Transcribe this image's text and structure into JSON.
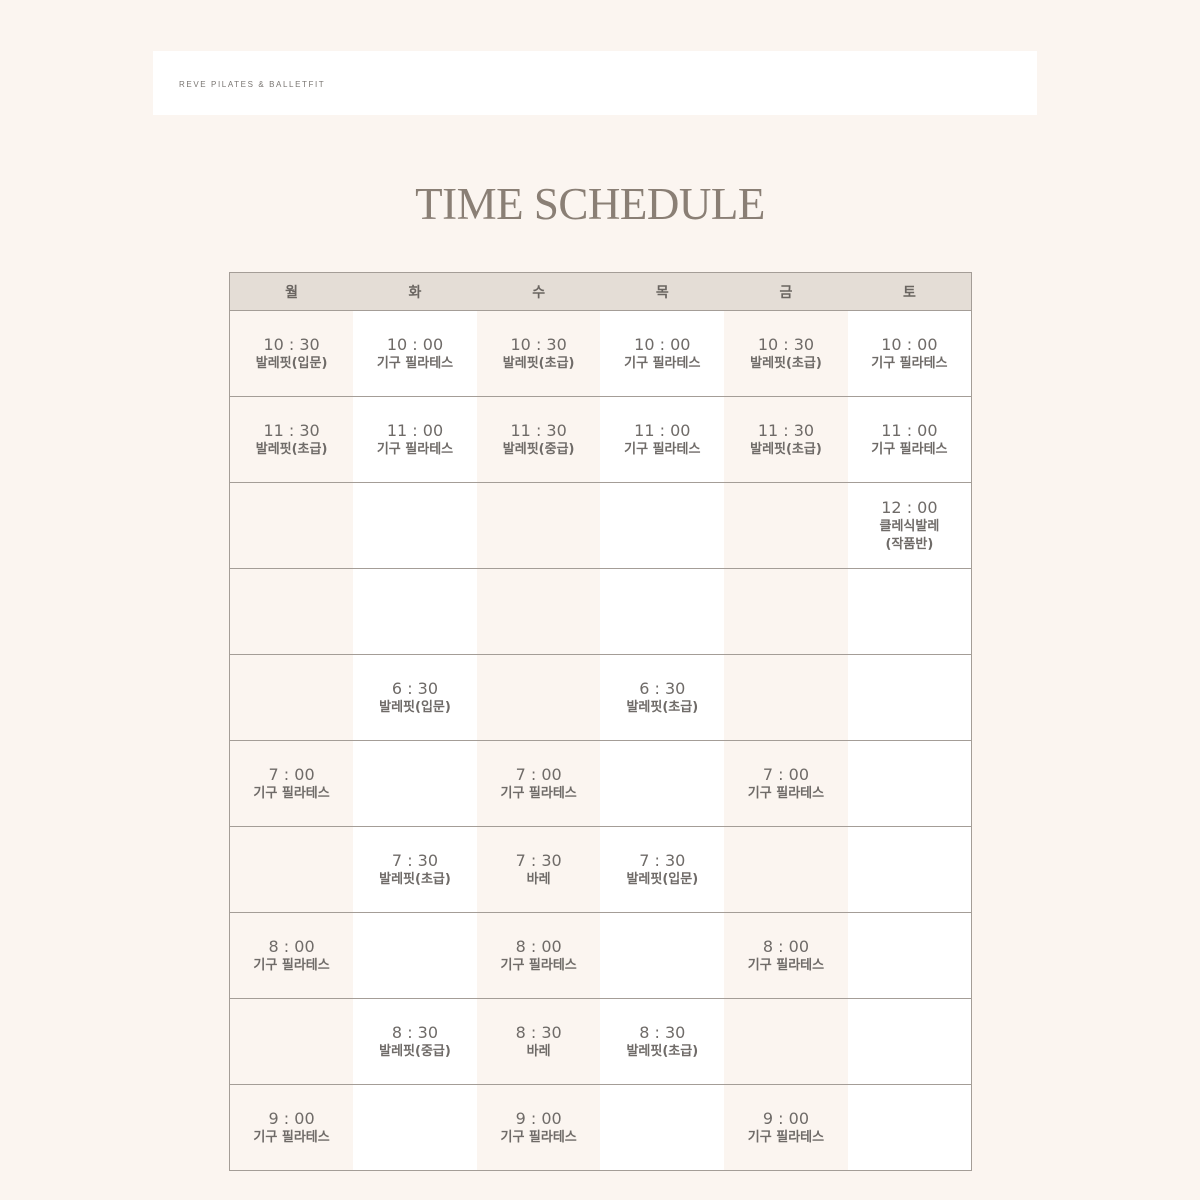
{
  "header": {
    "brand": "REVE PILATES & BALLETFIT"
  },
  "page_title": "TIME SCHEDULE",
  "schedule": {
    "days": [
      "월",
      "화",
      "수",
      "목",
      "금",
      "토"
    ],
    "rows": [
      [
        {
          "time": "10 : 30",
          "name": [
            "발레핏(입문)"
          ]
        },
        {
          "time": "10 : 00",
          "name": [
            "기구 필라테스"
          ]
        },
        {
          "time": "10 :  30",
          "name": [
            "발레핏(초급)"
          ]
        },
        {
          "time": "10 : 00",
          "name": [
            "기구 필라테스"
          ]
        },
        {
          "time": "10 : 30",
          "name": [
            "발레핏(초급)"
          ]
        },
        {
          "time": "10 : 00",
          "name": [
            "기구 필라테스"
          ]
        }
      ],
      [
        {
          "time": "11 : 30",
          "name": [
            "발레핏(초급)"
          ]
        },
        {
          "time": "11 : 00",
          "name": [
            "기구 필라테스"
          ]
        },
        {
          "time": "11 : 30",
          "name": [
            "발레핏(중급)"
          ]
        },
        {
          "time": "11 : 00",
          "name": [
            "기구 필라테스"
          ]
        },
        {
          "time": "11 : 30",
          "name": [
            "발레핏(초급)"
          ]
        },
        {
          "time": "11 : 00",
          "name": [
            "기구 필라테스"
          ]
        }
      ],
      [
        null,
        null,
        null,
        null,
        null,
        {
          "time": "12 : 00",
          "name": [
            "클레식발레",
            "(작품반)"
          ]
        }
      ],
      [
        null,
        null,
        null,
        null,
        null,
        null
      ],
      [
        null,
        {
          "time": "6 : 30",
          "name": [
            "발레핏(입문)"
          ]
        },
        null,
        {
          "time": "6 : 30",
          "name": [
            "발레핏(초급)"
          ]
        },
        null,
        null
      ],
      [
        {
          "time": "7 : 00",
          "name": [
            "기구 필라테스"
          ]
        },
        null,
        {
          "time": "7 : 00",
          "name": [
            "기구 필라테스"
          ]
        },
        null,
        {
          "time": "7 : 00",
          "name": [
            "기구 필라테스"
          ]
        },
        null
      ],
      [
        null,
        {
          "time": "7 : 30",
          "name": [
            "발레핏(초급)"
          ]
        },
        {
          "time": "7 : 30",
          "name": [
            "바레"
          ]
        },
        {
          "time": "7 : 30",
          "name": [
            "발레핏(입문)"
          ]
        },
        null,
        null
      ],
      [
        {
          "time": "8 : 00",
          "name": [
            "기구 필라테스"
          ]
        },
        null,
        {
          "time": "8 : 00",
          "name": [
            "기구 필라테스"
          ]
        },
        null,
        {
          "time": "8 : 00",
          "name": [
            "기구 필라테스"
          ]
        },
        null
      ],
      [
        null,
        {
          "time": "8 : 30",
          "name": [
            "발레핏(중급)"
          ]
        },
        {
          "time": "8 : 30",
          "name": [
            "바레"
          ]
        },
        {
          "time": "8 : 30",
          "name": [
            "발레핏(초급)"
          ]
        },
        null,
        null
      ],
      [
        {
          "time": "9 : 00",
          "name": [
            "기구 필라테스"
          ]
        },
        null,
        {
          "time": "9 : 00",
          "name": [
            "기구 필라테스"
          ]
        },
        null,
        {
          "time": "9 : 00",
          "name": [
            "기구 필라테스"
          ]
        },
        null
      ]
    ]
  }
}
